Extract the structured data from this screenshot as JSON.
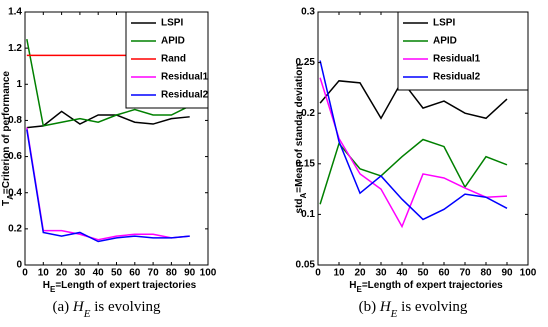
{
  "chart_data": [
    {
      "type": "line",
      "x": [
        1,
        10,
        20,
        30,
        40,
        50,
        60,
        70,
        80,
        90
      ],
      "xlim": [
        0,
        100
      ],
      "xticks": [
        0,
        10,
        20,
        30,
        40,
        50,
        60,
        70,
        80,
        90,
        100
      ],
      "ylim": [
        0,
        1.4
      ],
      "yticks": [
        0,
        0.2,
        0.4,
        0.6,
        0.8,
        1,
        1.2,
        1.4
      ],
      "xlabel": {
        "base": "H",
        "sub": "E",
        "text": "=Length of expert trajectories"
      },
      "ylabel": {
        "base": "T",
        "sub": "A",
        "text": "=Criterion of performance"
      },
      "caption": {
        "tag": "(a)",
        "base": "H",
        "sub": "E",
        "text": "is evolving"
      },
      "legend": "upper right",
      "series": [
        {
          "name": "LSPI",
          "color": "#000000",
          "values": [
            0.76,
            0.77,
            0.85,
            0.78,
            0.83,
            0.83,
            0.79,
            0.78,
            0.81,
            0.82
          ]
        },
        {
          "name": "APID",
          "color": "#008000",
          "values": [
            1.25,
            0.77,
            0.79,
            0.81,
            0.79,
            0.83,
            0.86,
            0.83,
            0.83,
            0.88
          ]
        },
        {
          "name": "Rand",
          "color": "#ff0000",
          "values": [
            1.16,
            1.16,
            1.16,
            1.16,
            1.16,
            1.16,
            1.16,
            1.16,
            1.16,
            1.16
          ]
        },
        {
          "name": "Residual1",
          "color": "#ff00ff",
          "values": [
            0.76,
            0.19,
            0.19,
            0.17,
            0.14,
            0.16,
            0.17,
            0.17,
            0.15,
            0.16
          ]
        },
        {
          "name": "Residual2",
          "color": "#0000ff",
          "values": [
            0.75,
            0.18,
            0.16,
            0.18,
            0.13,
            0.15,
            0.16,
            0.15,
            0.15,
            0.16
          ]
        }
      ]
    },
    {
      "type": "line",
      "x": [
        1,
        10,
        20,
        30,
        40,
        50,
        60,
        70,
        80,
        90
      ],
      "xlim": [
        0,
        100
      ],
      "xticks": [
        0,
        10,
        20,
        30,
        40,
        50,
        60,
        70,
        80,
        90,
        100
      ],
      "ylim": [
        0.05,
        0.3
      ],
      "yticks": [
        0.05,
        0.1,
        0.15,
        0.2,
        0.25,
        0.3
      ],
      "xlabel": {
        "base": "H",
        "sub": "E",
        "text": "=Length of expert trajectories"
      },
      "ylabel": {
        "base": "std",
        "sub": "A",
        "text": "=Mean of standar deviation"
      },
      "caption": {
        "tag": "(b)",
        "base": "H",
        "sub": "E",
        "text": "is evolving"
      },
      "legend": "upper right",
      "series": [
        {
          "name": "LSPI",
          "color": "#000000",
          "values": [
            0.21,
            0.232,
            0.23,
            0.195,
            0.232,
            0.205,
            0.212,
            0.2,
            0.195,
            0.214
          ]
        },
        {
          "name": "APID",
          "color": "#008000",
          "values": [
            0.11,
            0.17,
            0.145,
            0.138,
            0.157,
            0.174,
            0.167,
            0.127,
            0.157,
            0.149
          ]
        },
        {
          "name": "Residual1",
          "color": "#ff00ff",
          "values": [
            0.235,
            0.175,
            0.14,
            0.125,
            0.088,
            0.14,
            0.136,
            0.126,
            0.117,
            0.118
          ]
        },
        {
          "name": "Residual2",
          "color": "#0000ff",
          "values": [
            0.252,
            0.172,
            0.121,
            0.138,
            0.115,
            0.095,
            0.105,
            0.12,
            0.117,
            0.106
          ]
        }
      ]
    }
  ]
}
